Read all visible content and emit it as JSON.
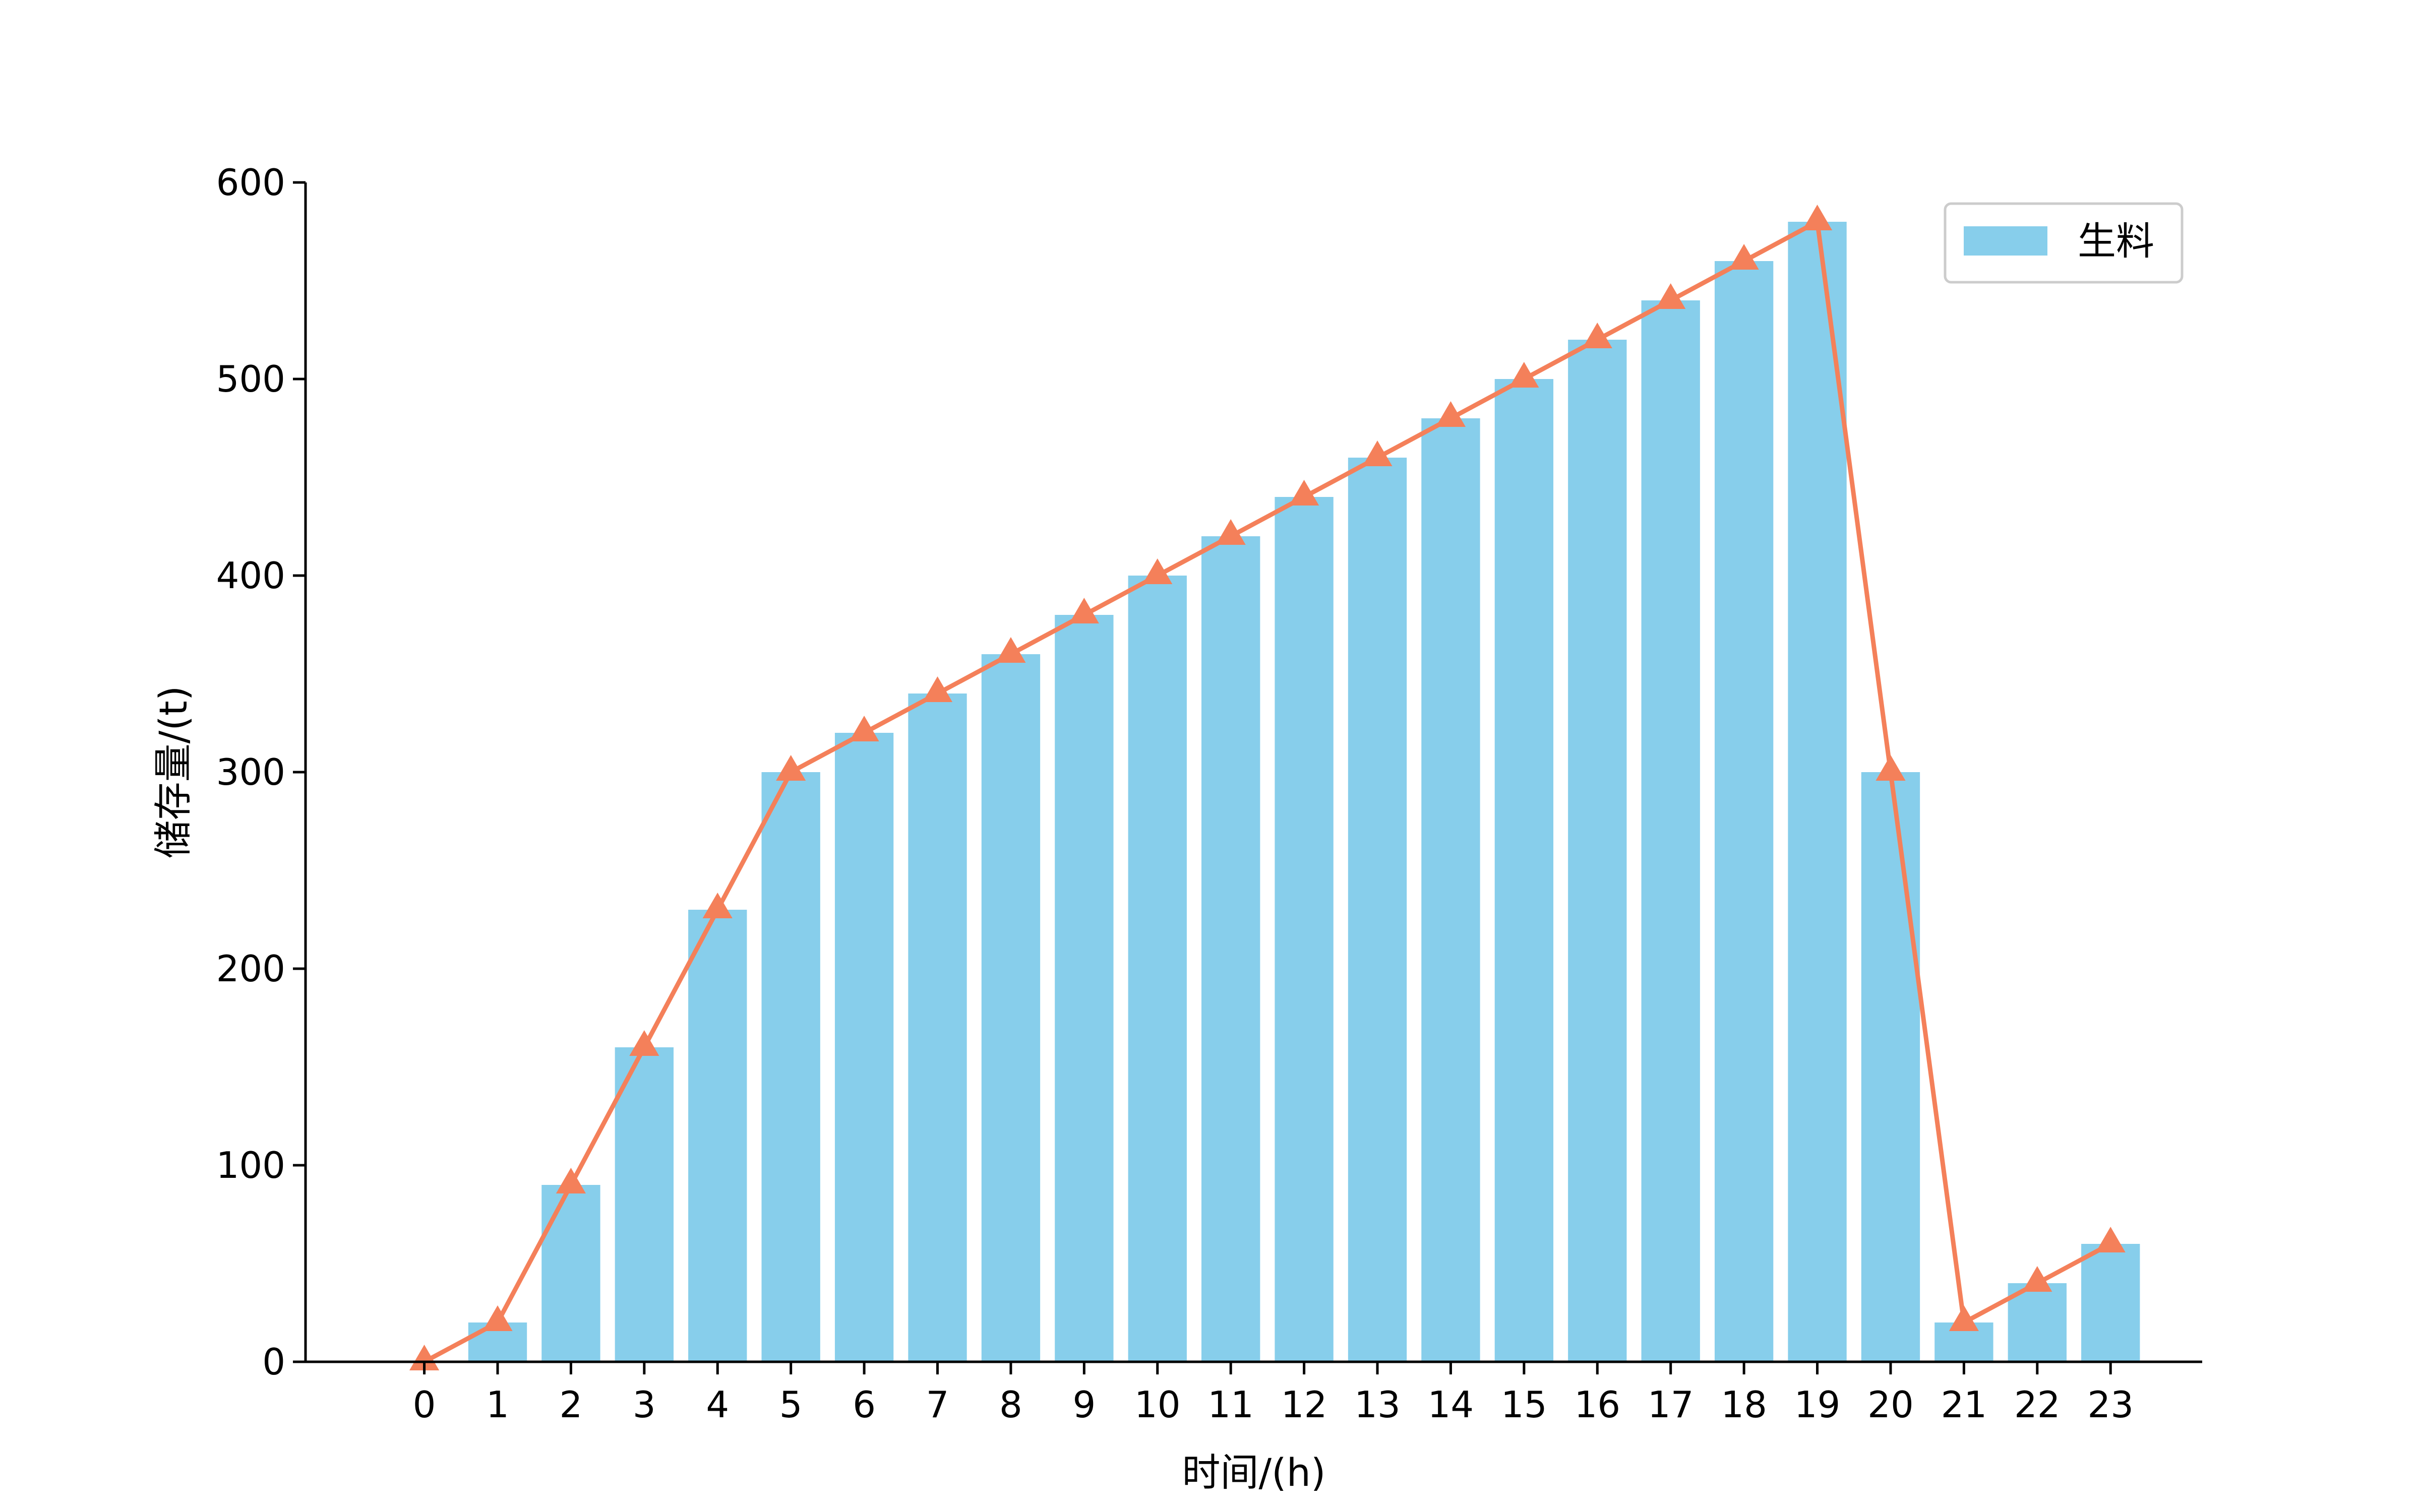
{
  "chart_data": {
    "type": "bar",
    "title": "",
    "xlabel": "时间/(h)",
    "ylabel": "储存量/(t)",
    "categories": [
      "0",
      "1",
      "2",
      "3",
      "4",
      "5",
      "6",
      "7",
      "8",
      "9",
      "10",
      "11",
      "12",
      "13",
      "14",
      "15",
      "16",
      "17",
      "18",
      "19",
      "20",
      "21",
      "22",
      "23"
    ],
    "x": [
      0,
      1,
      2,
      3,
      4,
      5,
      6,
      7,
      8,
      9,
      10,
      11,
      12,
      13,
      14,
      15,
      16,
      17,
      18,
      19,
      20,
      21,
      22,
      23
    ],
    "series": [
      {
        "name": "生料",
        "type": "bar",
        "color": "#87CEEB",
        "values": [
          0,
          20,
          90,
          160,
          230,
          300,
          320,
          340,
          360,
          380,
          400,
          420,
          440,
          460,
          480,
          500,
          520,
          540,
          560,
          580,
          300,
          20,
          40,
          60
        ]
      },
      {
        "type": "line",
        "marker": "triangle",
        "color": "#F4805A",
        "values": [
          0,
          20,
          90,
          160,
          230,
          300,
          320,
          340,
          360,
          380,
          400,
          420,
          440,
          460,
          480,
          500,
          520,
          540,
          560,
          580,
          300,
          20,
          40,
          60
        ]
      }
    ],
    "ylim": [
      0,
      600
    ],
    "yticks": [
      0,
      100,
      200,
      300,
      400,
      500,
      600
    ],
    "grid": false,
    "legend": {
      "position": "top-right",
      "entries": [
        "生料"
      ]
    }
  }
}
